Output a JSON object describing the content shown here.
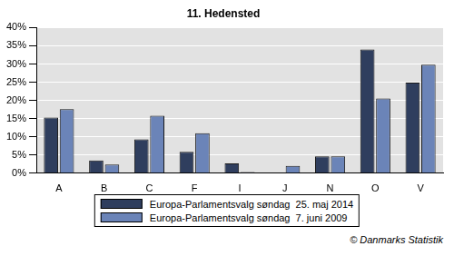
{
  "chart_data": {
    "type": "bar",
    "title": "11. Hedensted",
    "categories": [
      "A",
      "B",
      "C",
      "F",
      "I",
      "J",
      "N",
      "O",
      "V"
    ],
    "series": [
      {
        "name": "Europa-Parlamentsvalg søndag  25. maj 2014",
        "color": "#2f3e5e",
        "values": [
          15.3,
          3.5,
          9.3,
          5.9,
          2.7,
          null,
          4.6,
          34.0,
          24.9
        ]
      },
      {
        "name": "Europa-Parlamentsvalg søndag  7. juni 2009",
        "color": "#6b84b8",
        "values": [
          17.6,
          2.4,
          15.8,
          11.0,
          0.3,
          2.0,
          4.6,
          20.5,
          29.8
        ]
      }
    ],
    "ylim": [
      0,
      40
    ],
    "yticks": [
      {
        "value": 0,
        "label": "0%"
      },
      {
        "value": 5,
        "label": "5%"
      },
      {
        "value": 10,
        "label": "10%"
      },
      {
        "value": 15,
        "label": "15%"
      },
      {
        "value": 20,
        "label": "20%"
      },
      {
        "value": 25,
        "label": "25%"
      },
      {
        "value": 30,
        "label": "30%"
      },
      {
        "value": 35,
        "label": "35%"
      },
      {
        "value": 40,
        "label": "40%"
      }
    ],
    "grid": true,
    "legend": "bottom",
    "data_labels": false,
    "annotation": "© Danmarks Statistik"
  }
}
